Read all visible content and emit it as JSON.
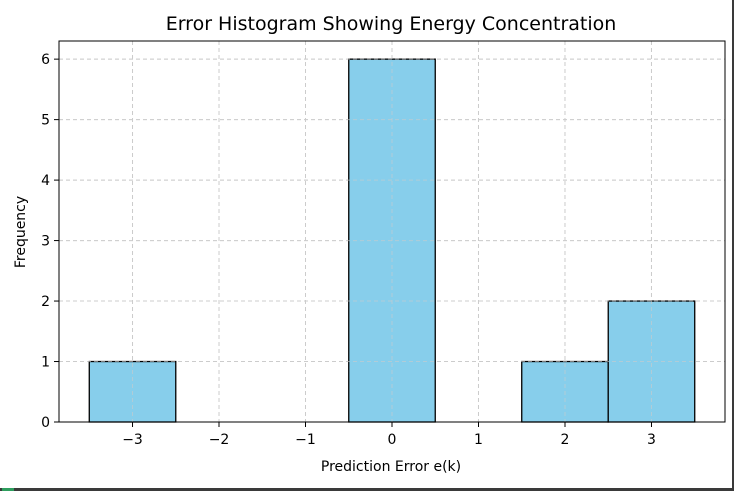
{
  "chart_data": {
    "type": "bar",
    "title": "Error Histogram Showing Energy Concentration",
    "xlabel": "Prediction Error e(k)",
    "ylabel": "Frequency",
    "bins": [
      {
        "x0": -3.5,
        "x1": -2.5,
        "count": 1
      },
      {
        "x0": -2.5,
        "x1": -1.5,
        "count": 0
      },
      {
        "x0": -1.5,
        "x1": -0.5,
        "count": 0
      },
      {
        "x0": -0.5,
        "x1": 0.5,
        "count": 6
      },
      {
        "x0": 0.5,
        "x1": 1.5,
        "count": 0
      },
      {
        "x0": 1.5,
        "x1": 2.5,
        "count": 1
      },
      {
        "x0": 2.5,
        "x1": 3.5,
        "count": 2
      }
    ],
    "xticks": [
      -3,
      -2,
      -1,
      0,
      1,
      2,
      3
    ],
    "xtick_labels": [
      "−3",
      "−2",
      "−1",
      "0",
      "1",
      "2",
      "3"
    ],
    "yticks": [
      0,
      1,
      2,
      3,
      4,
      5,
      6
    ],
    "ytick_labels": [
      "0",
      "1",
      "2",
      "3",
      "4",
      "5",
      "6"
    ],
    "xlim": [
      -3.85,
      3.85
    ],
    "ylim": [
      0,
      6.3
    ],
    "grid": true,
    "bar_color": "#87ceeb",
    "edge_color": "#000000",
    "grid_color": "#cccccc"
  }
}
